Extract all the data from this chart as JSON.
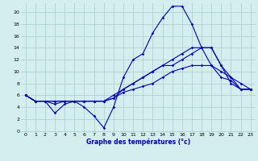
{
  "xlabel": "Graphe des températures (°c)",
  "background_color": "#d4eef0",
  "grid_color": "#aacccc",
  "line_color": "#0000bb",
  "x_ticks": [
    0,
    1,
    2,
    3,
    4,
    5,
    6,
    7,
    8,
    9,
    10,
    11,
    12,
    13,
    14,
    15,
    16,
    17,
    18,
    19,
    20,
    21,
    22,
    23
  ],
  "y_ticks": [
    0,
    2,
    4,
    6,
    8,
    10,
    12,
    14,
    16,
    18,
    20
  ],
  "ylim": [
    -0.2,
    21.5
  ],
  "xlim": [
    -0.5,
    23.5
  ],
  "curves": [
    {
      "x": [
        0,
        1,
        2,
        3,
        4,
        5,
        6,
        7,
        8,
        9,
        10,
        11,
        12,
        13,
        14,
        15,
        16,
        17,
        18,
        19,
        20,
        21,
        22,
        23
      ],
      "y": [
        6,
        5,
        5,
        4.5,
        5,
        5,
        5,
        5,
        5,
        5.5,
        7,
        8,
        9,
        10,
        11,
        12,
        13,
        14,
        14,
        14,
        11,
        8,
        7,
        7
      ]
    },
    {
      "x": [
        0,
        1,
        2,
        3,
        4,
        5,
        6,
        7,
        8,
        9,
        10,
        11,
        12,
        13,
        14,
        15,
        16,
        17,
        18,
        19,
        20,
        21,
        22,
        23
      ],
      "y": [
        6,
        5,
        5,
        5,
        5,
        5,
        5,
        5,
        5,
        6,
        7,
        8,
        9,
        10,
        11,
        11,
        12,
        13,
        14,
        14,
        11,
        9,
        8,
        7
      ]
    },
    {
      "x": [
        0,
        1,
        2,
        3,
        4,
        5,
        6,
        7,
        8,
        9,
        10,
        11,
        12,
        13,
        14,
        15,
        16,
        17,
        18,
        19,
        20,
        21,
        22,
        23
      ],
      "y": [
        6,
        5,
        5,
        5,
        5,
        5,
        5,
        5,
        5,
        5.5,
        6.5,
        7,
        7.5,
        8,
        9,
        10,
        10.5,
        11,
        11,
        11,
        10,
        9,
        7,
        7
      ]
    },
    {
      "x": [
        0,
        1,
        2,
        3,
        4,
        5,
        6,
        7,
        8,
        9,
        10,
        11,
        12,
        13,
        14,
        15,
        16,
        17,
        18,
        19,
        20,
        21,
        22,
        23
      ],
      "y": [
        6,
        5,
        5,
        3,
        4.5,
        5,
        4,
        2.5,
        0.5,
        4,
        9,
        12,
        13,
        16.5,
        19,
        21,
        21,
        18,
        14,
        11,
        9,
        8.5,
        7,
        7
      ]
    }
  ]
}
